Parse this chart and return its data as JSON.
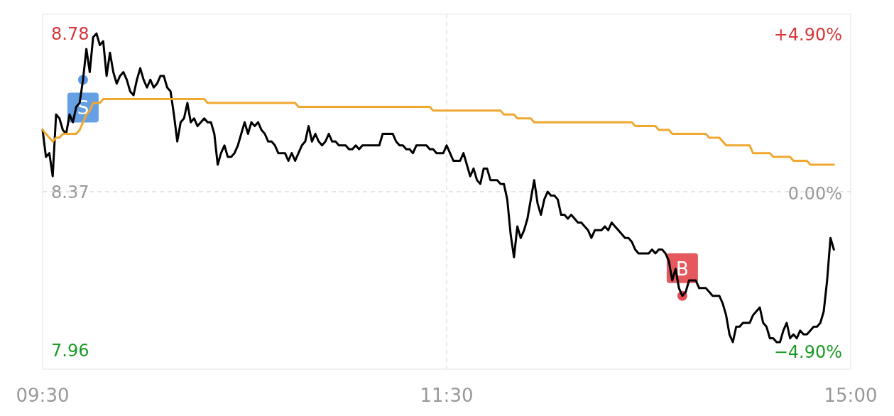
{
  "chart_data": {
    "type": "line",
    "categories": [
      "09:30",
      null,
      null,
      null,
      null,
      null,
      null,
      null,
      null,
      null,
      null,
      null,
      null,
      null,
      null,
      null,
      null,
      null,
      null,
      null,
      null,
      null,
      null,
      null,
      null,
      null,
      null,
      null,
      null,
      null,
      null,
      null,
      null,
      null,
      null,
      null,
      null,
      null,
      null,
      null,
      null,
      null,
      null,
      null,
      null,
      null,
      null,
      null,
      null,
      null,
      null,
      null,
      null,
      null,
      null,
      null,
      null,
      null,
      null,
      null,
      null,
      null,
      null,
      null,
      null,
      null,
      null,
      null,
      null,
      null,
      null,
      null,
      null,
      null,
      null,
      null,
      null,
      null,
      null,
      null,
      null,
      null,
      null,
      null,
      null,
      null,
      null,
      null,
      null,
      null,
      null,
      null,
      null,
      null,
      null,
      null,
      null,
      null,
      null,
      null,
      null,
      null,
      null,
      null,
      null,
      null,
      null,
      null,
      null,
      null,
      null,
      null,
      null,
      null,
      null,
      null,
      null,
      null,
      null,
      null,
      "11:30",
      null,
      null,
      null,
      null,
      null,
      null,
      null,
      null,
      null,
      null,
      null,
      null,
      null,
      null,
      null,
      null,
      null,
      null,
      null,
      null,
      null,
      null,
      null,
      null,
      null,
      null,
      null,
      null,
      null,
      null,
      null,
      null,
      null,
      null,
      null,
      null,
      null,
      null,
      null,
      null,
      null,
      null,
      null,
      null,
      null,
      null,
      null,
      null,
      null,
      null,
      null,
      null,
      null,
      null,
      null,
      null,
      null,
      null,
      null,
      null,
      null,
      null,
      null,
      null,
      null,
      null,
      null,
      null,
      null,
      null,
      null,
      null,
      null,
      null,
      null,
      null,
      null,
      null,
      null,
      null,
      null,
      null,
      null,
      null,
      null,
      null,
      null,
      null,
      null,
      null,
      null,
      null,
      null,
      null,
      null,
      null,
      null,
      null,
      null,
      null,
      null,
      null,
      null,
      null,
      null,
      null,
      null,
      null,
      null,
      null,
      null,
      null,
      null,
      null,
      null,
      null,
      null,
      null,
      null,
      "15:00"
    ],
    "ylim": [
      7.91,
      8.83
    ],
    "yticks": [
      7.96,
      8.37,
      8.78
    ],
    "y2lim": [
      -5.45,
      5.52
    ],
    "y2ticks": [
      {
        "value": 4.9,
        "label": "+4.90%"
      },
      {
        "value": 0,
        "label": "0.00%"
      },
      {
        "value": -4.9,
        "label": "−4.90%"
      }
    ],
    "marker": "none",
    "line_style": "solid",
    "ref_lines": [
      {
        "axis": "y",
        "value": 8.37,
        "color": "#dddddd",
        "line_style": "dashed"
      },
      {
        "axis": "x",
        "value": "11:30",
        "color": "#e6e6e6",
        "line_style": "dashed"
      }
    ],
    "annotations": [
      {
        "text": "S",
        "y": 8.66
      },
      {
        "text": "B",
        "y": 8.1
      }
    ],
    "series": [
      {
        "color": "#000000",
        "values": [
          8.53,
          8.46,
          8.47,
          8.41,
          8.57,
          8.56,
          8.53,
          8.52,
          8.57,
          8.55,
          8.59,
          8.6,
          8.66,
          8.74,
          8.68,
          8.77,
          8.78,
          8.75,
          8.76,
          8.67,
          8.73,
          8.68,
          8.65,
          8.67,
          8.68,
          8.66,
          8.63,
          8.62,
          8.66,
          8.69,
          8.66,
          8.64,
          8.66,
          8.64,
          8.65,
          8.67,
          8.67,
          8.64,
          8.63,
          8.57,
          8.5,
          8.55,
          8.56,
          8.6,
          8.55,
          8.56,
          8.54,
          8.55,
          8.56,
          8.55,
          8.55,
          8.52,
          8.44,
          8.47,
          8.49,
          8.46,
          8.46,
          8.47,
          8.49,
          8.52,
          8.55,
          8.52,
          8.55,
          8.54,
          8.55,
          8.53,
          8.52,
          8.5,
          8.5,
          8.49,
          8.47,
          8.47,
          8.47,
          8.45,
          8.47,
          8.45,
          8.47,
          8.49,
          8.5,
          8.54,
          8.5,
          8.52,
          8.5,
          8.49,
          8.5,
          8.52,
          8.5,
          8.5,
          8.49,
          8.49,
          8.49,
          8.48,
          8.48,
          8.49,
          8.48,
          8.49,
          8.49,
          8.49,
          8.49,
          8.49,
          8.49,
          8.52,
          8.52,
          8.52,
          8.52,
          8.5,
          8.49,
          8.49,
          8.48,
          8.48,
          8.47,
          8.49,
          8.49,
          8.49,
          8.49,
          8.48,
          8.48,
          8.47,
          8.47,
          8.47,
          8.49,
          8.47,
          8.45,
          8.45,
          8.45,
          8.47,
          8.44,
          8.41,
          8.43,
          8.4,
          8.39,
          8.43,
          8.43,
          8.4,
          8.4,
          8.4,
          8.39,
          8.39,
          8.35,
          8.26,
          8.2,
          8.28,
          8.25,
          8.27,
          8.3,
          8.35,
          8.4,
          8.34,
          8.31,
          8.35,
          8.37,
          8.36,
          8.36,
          8.35,
          8.31,
          8.31,
          8.3,
          8.31,
          8.3,
          8.29,
          8.29,
          8.28,
          8.27,
          8.25,
          8.27,
          8.27,
          8.27,
          8.28,
          8.27,
          8.29,
          8.28,
          8.27,
          8.26,
          8.25,
          8.25,
          8.24,
          8.22,
          8.21,
          8.21,
          8.21,
          8.21,
          8.22,
          8.21,
          8.22,
          8.22,
          8.21,
          8.19,
          8.14,
          8.17,
          8.12,
          8.1,
          8.11,
          8.14,
          8.14,
          8.14,
          8.12,
          8.12,
          8.12,
          8.11,
          8.1,
          8.1,
          8.1,
          8.08,
          8.05,
          8.0,
          7.98,
          8.02,
          8.02,
          8.03,
          8.03,
          8.03,
          8.05,
          8.06,
          8.07,
          8.03,
          8.02,
          7.99,
          7.99,
          7.98,
          7.98,
          8.01,
          8.03,
          7.99,
          8.0,
          7.99,
          8.01,
          8.0,
          8.0,
          8.01,
          8.02,
          8.02,
          8.03,
          8.06,
          8.14,
          8.25,
          8.22,
          null,
          null,
          null,
          null,
          null
        ]
      },
      {
        "color": "#f0a830",
        "values": [
          8.53,
          8.52,
          8.51,
          8.5,
          8.51,
          8.51,
          8.52,
          8.52,
          8.52,
          8.52,
          8.52,
          8.53,
          8.55,
          8.57,
          8.58,
          8.6,
          8.6,
          8.6,
          8.61,
          8.61,
          8.61,
          8.61,
          8.61,
          8.61,
          8.61,
          8.61,
          8.61,
          8.61,
          8.61,
          8.61,
          8.61,
          8.61,
          8.61,
          8.61,
          8.61,
          8.61,
          8.61,
          8.61,
          8.61,
          8.61,
          8.61,
          8.61,
          8.61,
          8.61,
          8.61,
          8.61,
          8.61,
          8.61,
          8.61,
          8.6,
          8.6,
          8.6,
          8.6,
          8.6,
          8.6,
          8.6,
          8.6,
          8.6,
          8.6,
          8.6,
          8.6,
          8.6,
          8.6,
          8.6,
          8.6,
          8.6,
          8.6,
          8.6,
          8.6,
          8.6,
          8.6,
          8.6,
          8.6,
          8.6,
          8.6,
          8.6,
          8.59,
          8.59,
          8.59,
          8.59,
          8.59,
          8.59,
          8.59,
          8.59,
          8.59,
          8.59,
          8.59,
          8.59,
          8.59,
          8.59,
          8.59,
          8.59,
          8.59,
          8.59,
          8.59,
          8.59,
          8.59,
          8.59,
          8.59,
          8.59,
          8.59,
          8.59,
          8.59,
          8.59,
          8.59,
          8.59,
          8.59,
          8.59,
          8.59,
          8.59,
          8.59,
          8.59,
          8.59,
          8.59,
          8.59,
          8.59,
          8.58,
          8.58,
          8.58,
          8.58,
          8.58,
          8.58,
          8.58,
          8.58,
          8.58,
          8.58,
          8.58,
          8.58,
          8.58,
          8.58,
          8.58,
          8.58,
          8.58,
          8.58,
          8.58,
          8.58,
          8.58,
          8.57,
          8.57,
          8.57,
          8.57,
          8.56,
          8.56,
          8.56,
          8.56,
          8.56,
          8.55,
          8.55,
          8.55,
          8.55,
          8.55,
          8.55,
          8.55,
          8.55,
          8.55,
          8.55,
          8.55,
          8.55,
          8.55,
          8.55,
          8.55,
          8.55,
          8.55,
          8.55,
          8.55,
          8.55,
          8.55,
          8.55,
          8.55,
          8.55,
          8.55,
          8.55,
          8.55,
          8.55,
          8.55,
          8.55,
          8.54,
          8.54,
          8.54,
          8.54,
          8.54,
          8.54,
          8.54,
          8.53,
          8.53,
          8.53,
          8.53,
          8.52,
          8.52,
          8.52,
          8.52,
          8.52,
          8.52,
          8.52,
          8.52,
          8.52,
          8.52,
          8.52,
          8.51,
          8.51,
          8.51,
          8.51,
          8.5,
          8.49,
          8.49,
          8.49,
          8.49,
          8.49,
          8.49,
          8.49,
          8.49,
          8.47,
          8.47,
          8.47,
          8.47,
          8.47,
          8.47,
          8.46,
          8.46,
          8.46,
          8.46,
          8.46,
          8.46,
          8.45,
          8.45,
          8.45,
          8.45,
          8.45,
          8.44,
          8.44,
          8.44,
          8.44,
          8.44,
          8.44,
          8.44,
          8.44,
          null,
          null,
          null,
          null,
          null
        ]
      }
    ]
  }
}
